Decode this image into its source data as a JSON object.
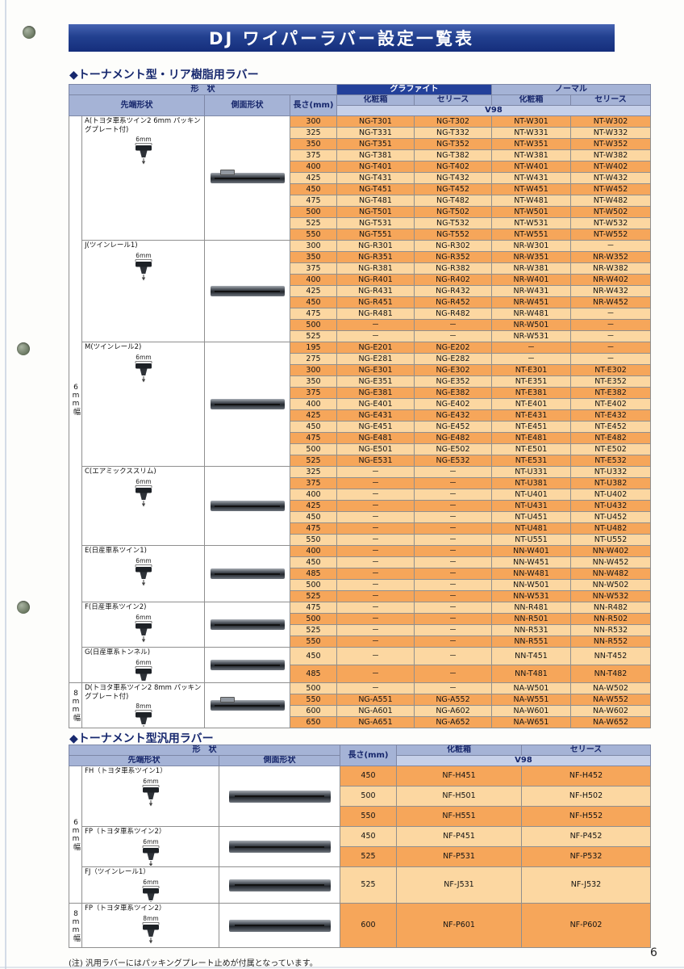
{
  "page": {
    "title": "DJ ワイパーラバー設定一覧表",
    "footnote": "(注) 汎用ラバーにはパッキングプレート止めが付属となっています。",
    "page_number": "6"
  },
  "colors": {
    "banner_blue": "#22408f",
    "header_blue": "#a5b3d6",
    "graphite_blue": "#23409a",
    "stripe_dark_orange": "#f6a65a",
    "stripe_light_orange": "#fcd7a1"
  },
  "section1": {
    "heading": "◆トーナメント型・リア樹脂用ラバー",
    "header": {
      "shape": "形　状",
      "tip_shape": "先端形状",
      "side_shape": "側面形状",
      "length": "長さ(mm)",
      "graphite": "グラファイト",
      "normal": "ノーマル",
      "box": "化粧箱",
      "series": "セリース",
      "model": "V98"
    },
    "groups": [
      {
        "label": "A(トヨタ車系ツイン2 6mm パッキングプレート付)",
        "dim": "6mm",
        "width_band": "6mm幅",
        "rows": [
          [
            "300",
            "NG-T301",
            "NG-T302",
            "NT-W301",
            "NT-W302"
          ],
          [
            "325",
            "NG-T331",
            "NG-T332",
            "NT-W331",
            "NT-W332"
          ],
          [
            "350",
            "NG-T351",
            "NG-T352",
            "NT-W351",
            "NT-W352"
          ],
          [
            "375",
            "NG-T381",
            "NG-T382",
            "NT-W381",
            "NT-W382"
          ],
          [
            "400",
            "NG-T401",
            "NG-T402",
            "NT-W401",
            "NT-W402"
          ],
          [
            "425",
            "NG-T431",
            "NG-T432",
            "NT-W431",
            "NT-W432"
          ],
          [
            "450",
            "NG-T451",
            "NG-T452",
            "NT-W451",
            "NT-W452"
          ],
          [
            "475",
            "NG-T481",
            "NG-T482",
            "NT-W481",
            "NT-W482"
          ],
          [
            "500",
            "NG-T501",
            "NG-T502",
            "NT-W501",
            "NT-W502"
          ],
          [
            "525",
            "NG-T531",
            "NG-T532",
            "NT-W531",
            "NT-W532"
          ],
          [
            "550",
            "NG-T551",
            "NG-T552",
            "NT-W551",
            "NT-W552"
          ]
        ]
      },
      {
        "label": "J(ツインレール1)",
        "dim": "6mm",
        "width_band": "6mm幅",
        "rows": [
          [
            "300",
            "NG-R301",
            "NG-R302",
            "NR-W301",
            "－"
          ],
          [
            "350",
            "NG-R351",
            "NG-R352",
            "NR-W351",
            "NR-W352"
          ],
          [
            "375",
            "NG-R381",
            "NG-R382",
            "NR-W381",
            "NR-W382"
          ],
          [
            "400",
            "NG-R401",
            "NG-R402",
            "NR-W401",
            "NR-W402"
          ],
          [
            "425",
            "NG-R431",
            "NG-R432",
            "NR-W431",
            "NR-W432"
          ],
          [
            "450",
            "NG-R451",
            "NG-R452",
            "NR-W451",
            "NR-W452"
          ],
          [
            "475",
            "NG-R481",
            "NG-R482",
            "NR-W481",
            "－"
          ],
          [
            "500",
            "－",
            "－",
            "NR-W501",
            "－"
          ],
          [
            "525",
            "－",
            "－",
            "NR-W531",
            "－"
          ]
        ]
      },
      {
        "label": "M(ツインレール2)",
        "dim": "6mm",
        "width_band": "6mm幅",
        "rows": [
          [
            "195",
            "NG-E201",
            "NG-E202",
            "－",
            "－"
          ],
          [
            "275",
            "NG-E281",
            "NG-E282",
            "－",
            "－"
          ],
          [
            "300",
            "NG-E301",
            "NG-E302",
            "NT-E301",
            "NT-E302"
          ],
          [
            "350",
            "NG-E351",
            "NG-E352",
            "NT-E351",
            "NT-E352"
          ],
          [
            "375",
            "NG-E381",
            "NG-E382",
            "NT-E381",
            "NT-E382"
          ],
          [
            "400",
            "NG-E401",
            "NG-E402",
            "NT-E401",
            "NT-E402"
          ],
          [
            "425",
            "NG-E431",
            "NG-E432",
            "NT-E431",
            "NT-E432"
          ],
          [
            "450",
            "NG-E451",
            "NG-E452",
            "NT-E451",
            "NT-E452"
          ],
          [
            "475",
            "NG-E481",
            "NG-E482",
            "NT-E481",
            "NT-E482"
          ],
          [
            "500",
            "NG-E501",
            "NG-E502",
            "NT-E501",
            "NT-E502"
          ],
          [
            "525",
            "NG-E531",
            "NG-E532",
            "NT-E531",
            "NT-E532"
          ]
        ]
      },
      {
        "label": "C(エアミックススリム)",
        "dim": "6mm",
        "width_band": "6mm幅",
        "rows": [
          [
            "325",
            "－",
            "－",
            "NT-U331",
            "NT-U332"
          ],
          [
            "375",
            "－",
            "－",
            "NT-U381",
            "NT-U382"
          ],
          [
            "400",
            "－",
            "－",
            "NT-U401",
            "NT-U402"
          ],
          [
            "425",
            "－",
            "－",
            "NT-U431",
            "NT-U432"
          ],
          [
            "450",
            "－",
            "－",
            "NT-U451",
            "NT-U452"
          ],
          [
            "475",
            "－",
            "－",
            "NT-U481",
            "NT-U482"
          ],
          [
            "550",
            "－",
            "－",
            "NT-U551",
            "NT-U552"
          ]
        ]
      },
      {
        "label": "E(日産車系ツイン1)",
        "dim": "6mm",
        "width_band": "6mm幅",
        "rows": [
          [
            "400",
            "－",
            "－",
            "NN-W401",
            "NN-W402"
          ],
          [
            "450",
            "－",
            "－",
            "NN-W451",
            "NN-W452"
          ],
          [
            "485",
            "－",
            "－",
            "NN-W481",
            "NN-W482"
          ],
          [
            "500",
            "－",
            "－",
            "NN-W501",
            "NN-W502"
          ],
          [
            "525",
            "－",
            "－",
            "NN-W531",
            "NN-W532"
          ]
        ]
      },
      {
        "label": "F(日産車系ツイン2)",
        "dim": "6mm",
        "width_band": "6mm幅",
        "rows": [
          [
            "475",
            "－",
            "－",
            "NN-R481",
            "NN-R482"
          ],
          [
            "500",
            "－",
            "－",
            "NN-R501",
            "NN-R502"
          ],
          [
            "525",
            "－",
            "－",
            "NN-R531",
            "NN-R532"
          ],
          [
            "550",
            "－",
            "－",
            "NN-R551",
            "NN-R552"
          ]
        ]
      },
      {
        "label": "G(日産車系トンネル)",
        "dim": "6mm",
        "width_band": "6mm幅",
        "rows": [
          [
            "450",
            "－",
            "－",
            "NN-T451",
            "NN-T452"
          ],
          [
            "485",
            "－",
            "－",
            "NN-T481",
            "NN-T482"
          ]
        ]
      },
      {
        "label": "D(トヨタ車系ツイン2 8mm パッキングプレート付)",
        "dim": "8mm",
        "width_band": "8mm幅",
        "rows": [
          [
            "500",
            "－",
            "－",
            "NA-W501",
            "NA-W502"
          ],
          [
            "550",
            "NG-A551",
            "NG-A552",
            "NA-W551",
            "NA-W552"
          ],
          [
            "600",
            "NG-A601",
            "NG-A602",
            "NA-W601",
            "NA-W602"
          ],
          [
            "650",
            "NG-A651",
            "NG-A652",
            "NA-W651",
            "NA-W652"
          ]
        ]
      }
    ]
  },
  "section2": {
    "heading": "◆トーナメント型汎用ラバー",
    "header": {
      "shape": "形　状",
      "tip_shape": "先端形状",
      "side_shape": "側面形状",
      "length": "長さ(mm)",
      "box": "化粧箱",
      "series": "セリース",
      "model": "V98"
    },
    "groups": [
      {
        "label": "FH（トヨタ車系ツイン1）",
        "dim": "6mm",
        "width_band": "6mm幅",
        "rows": [
          [
            "450",
            "NF-H451",
            "NF-H452"
          ],
          [
            "500",
            "NF-H501",
            "NF-H502"
          ],
          [
            "550",
            "NF-H551",
            "NF-H552"
          ]
        ]
      },
      {
        "label": "FP（トヨタ車系ツイン2）",
        "dim": "6mm",
        "width_band": "6mm幅",
        "rows": [
          [
            "450",
            "NF-P451",
            "NF-P452"
          ],
          [
            "525",
            "NF-P531",
            "NF-P532"
          ]
        ]
      },
      {
        "label": "FJ（ツインレール1）",
        "dim": "6mm",
        "width_band": "6mm幅",
        "rows": [
          [
            "525",
            "NF-J531",
            "NF-J532"
          ]
        ]
      },
      {
        "label": "FP（トヨタ車系ツイン2）",
        "dim": "8mm",
        "width_band": "8mm幅",
        "rows": [
          [
            "600",
            "NF-P601",
            "NF-P602"
          ]
        ]
      }
    ]
  }
}
